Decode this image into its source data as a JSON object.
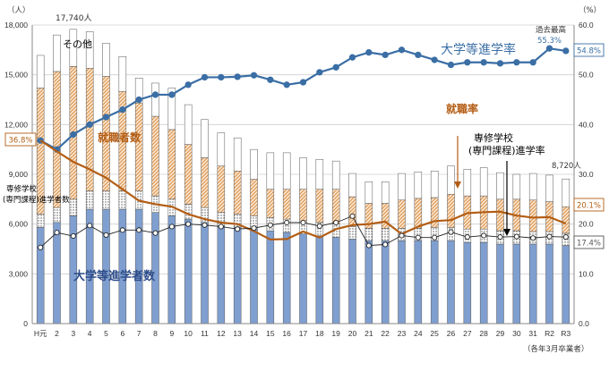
{
  "chart_data": {
    "type": "bar",
    "categories": [
      "H元",
      "2",
      "3",
      "4",
      "5",
      "6",
      "7",
      "8",
      "9",
      "10",
      "11",
      "12",
      "13",
      "14",
      "15",
      "16",
      "17",
      "18",
      "19",
      "20",
      "21",
      "22",
      "23",
      "24",
      "25",
      "26",
      "27",
      "28",
      "29",
      "30",
      "31",
      "R2",
      "R3"
    ],
    "left_axis": {
      "unit": "（人）",
      "ticks": [
        "0",
        "3,000",
        "6,000",
        "9,000",
        "12,000",
        "15,000",
        "18,000"
      ],
      "ylim": [
        0,
        18000
      ]
    },
    "right_axis": {
      "unit": "（%）",
      "ticks": [
        "0.0",
        "10.0",
        "20.0",
        "30.0",
        "40.0",
        "50.0",
        "60.0"
      ],
      "ylim": [
        0,
        60
      ]
    },
    "bar_series": [
      {
        "name": "大学等進学者数",
        "pattern": "blue",
        "values": [
          5800,
          6100,
          6500,
          6900,
          6900,
          6900,
          6900,
          6700,
          6500,
          6300,
          6100,
          5900,
          5800,
          5700,
          5600,
          5500,
          5400,
          5300,
          5200,
          5100,
          5000,
          5000,
          5000,
          5000,
          5000,
          5000,
          4900,
          4900,
          4800,
          4800,
          4800,
          4800,
          4700
        ]
      },
      {
        "name": "専修学校（専門課程）進学者数",
        "pattern": "dots",
        "values": [
          800,
          900,
          1000,
          1100,
          1100,
          1100,
          1100,
          1000,
          1000,
          900,
          900,
          800,
          800,
          800,
          800,
          800,
          800,
          800,
          800,
          750,
          750,
          750,
          750,
          750,
          800,
          800,
          800,
          800,
          800,
          800,
          750,
          750,
          750
        ]
      },
      {
        "name": "就職者数",
        "pattern": "hatch",
        "values": [
          7600,
          8200,
          8000,
          7400,
          6900,
          6000,
          5300,
          4800,
          4200,
          3600,
          3000,
          2800,
          2600,
          2200,
          1700,
          1800,
          1900,
          2000,
          2100,
          1800,
          1500,
          1500,
          1700,
          1800,
          1800,
          2000,
          2000,
          2000,
          1900,
          1900,
          1900,
          1800,
          1600
        ]
      },
      {
        "name": "その他",
        "pattern": "white",
        "values": [
          1970,
          2200,
          2240,
          2200,
          2000,
          2100,
          1500,
          2000,
          2500,
          2400,
          2300,
          2000,
          2000,
          1800,
          2200,
          2200,
          1900,
          1800,
          1700,
          1400,
          1300,
          1300,
          1600,
          1600,
          1600,
          1700,
          1600,
          1700,
          1600,
          1500,
          1600,
          1600,
          1670
        ]
      }
    ],
    "line_series": [
      {
        "name": "大学等進学率",
        "color": "#3a6ea5",
        "values": [
          36.8,
          35,
          38,
          40,
          41.5,
          43,
          45,
          46,
          46,
          48,
          49.5,
          49.5,
          49.6,
          49.9,
          49,
          48,
          48.5,
          50.5,
          51.5,
          53.5,
          54.5,
          54,
          55,
          54,
          53,
          52,
          52.5,
          52.5,
          52.3,
          52.5,
          52.5,
          55.3,
          54.8
        ]
      },
      {
        "name": "就職率",
        "color": "#b35d14",
        "values": [
          36.8,
          34.6,
          32.5,
          31,
          29.3,
          27,
          24.7,
          24,
          23.5,
          22,
          21,
          20.3,
          20,
          18.6,
          16.9,
          17,
          18.5,
          17.3,
          19,
          19.8,
          20,
          20.5,
          18,
          19.5,
          20.6,
          20.8,
          22.2,
          22.4,
          22.5,
          21.7,
          21.3,
          21.4,
          20.1
        ]
      },
      {
        "name": "専修学校（専門課程）進学率",
        "color": "#222222",
        "values": [
          15.3,
          18.3,
          17.6,
          19.7,
          17.8,
          18.8,
          18.8,
          18.2,
          19.5,
          20,
          19.8,
          19.5,
          19,
          19.2,
          19.8,
          20.3,
          20.3,
          19.6,
          20.3,
          21.6,
          15.7,
          15.9,
          17.7,
          17.3,
          17.3,
          18.4,
          17.4,
          17.7,
          17.4,
          17.5,
          17.2,
          17.5,
          17.4
        ]
      }
    ],
    "grid": true,
    "labels": {
      "peak_bar": "17,740人",
      "other": "その他",
      "univ_rate": "大学等進学率",
      "emp_count": "就職者数",
      "emp_rate": "就職率",
      "voc_rate_1": "専修学校",
      "voc_rate_2": "(専門課程)進学率",
      "voc_count_1": "専修学校",
      "voc_count_2": "(専門課程)進学者数",
      "univ_count": "大学等進学者数",
      "last_bar": "8,720人",
      "record_1": "過去最高",
      "record_2": "55.3%",
      "val_left": "36.8%",
      "val_univ": "54.8%",
      "val_emp": "20.1%",
      "val_voc": "17.4%",
      "footnote": "（各年3月卒業者）"
    }
  }
}
